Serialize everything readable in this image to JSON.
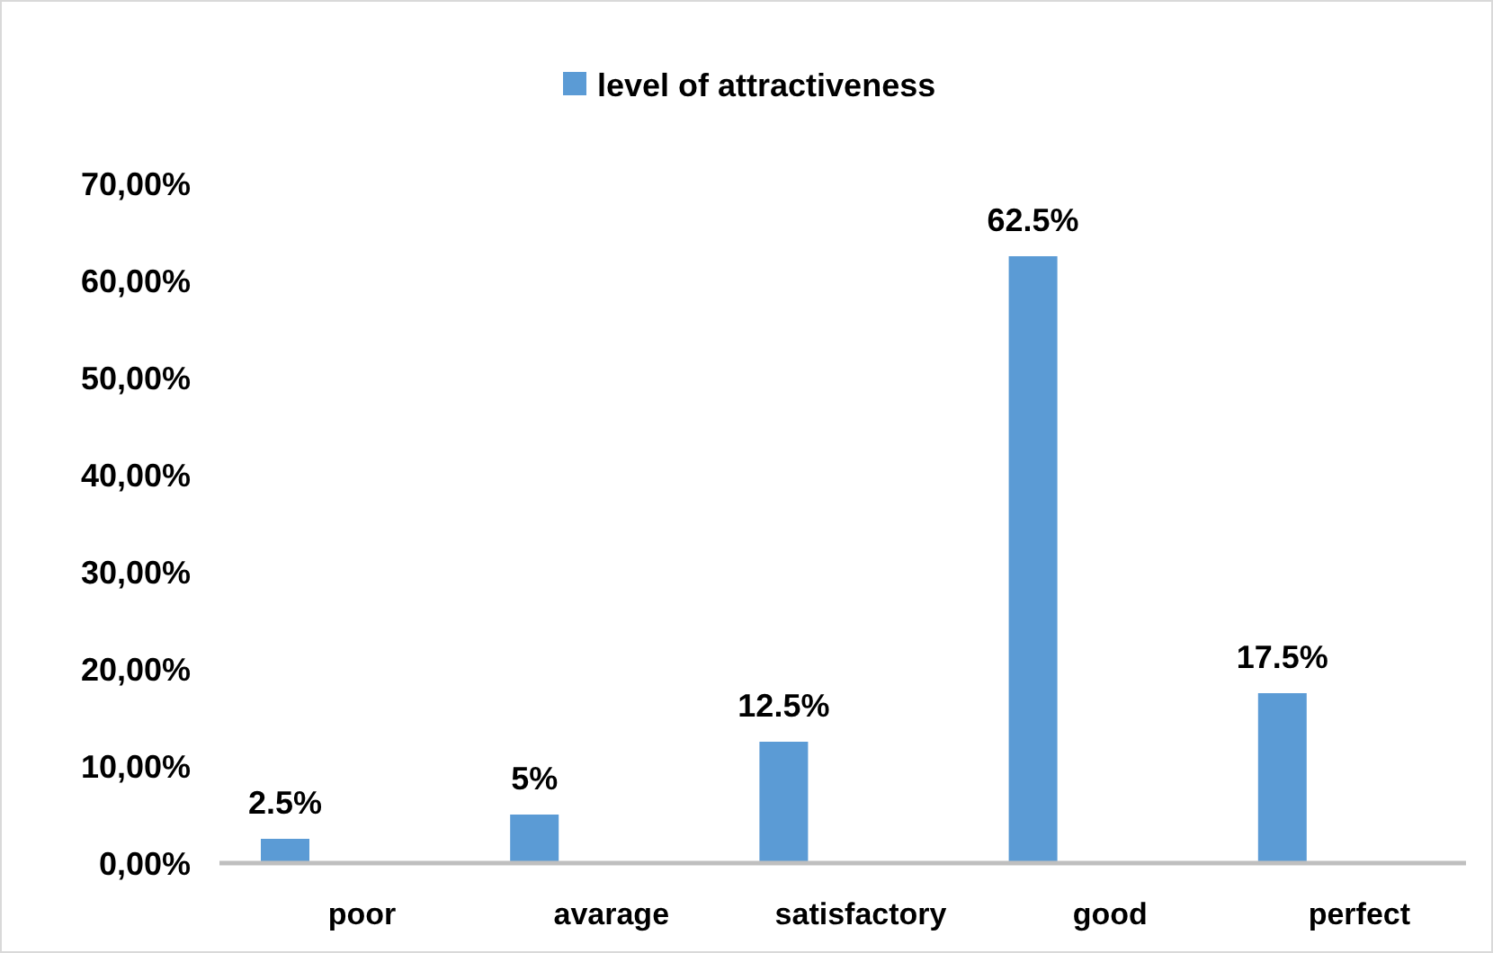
{
  "chart_data": {
    "type": "bar",
    "categories": [
      "poor",
      "avarage",
      "satisfactory",
      "good",
      "perfect"
    ],
    "series": [
      {
        "name": "level of attractiveness",
        "color": "#5b9bd5",
        "values": [
          2.5,
          5,
          12.5,
          62.5,
          17.5
        ],
        "value_labels": [
          "2.5%",
          "5%",
          "12.5%",
          "62.5%",
          "17.5%"
        ]
      }
    ],
    "ylim": [
      0,
      70
    ],
    "yticks": [
      {
        "value": 0,
        "label": "0,00%"
      },
      {
        "value": 10,
        "label": "10,00%"
      },
      {
        "value": 20,
        "label": "20,00%"
      },
      {
        "value": 30,
        "label": "30,00%"
      },
      {
        "value": 40,
        "label": "40,00%"
      },
      {
        "value": 50,
        "label": "50,00%"
      },
      {
        "value": 60,
        "label": "60,00%"
      },
      {
        "value": 70,
        "label": "70,00%"
      }
    ],
    "grid": false,
    "legend": "top"
  }
}
